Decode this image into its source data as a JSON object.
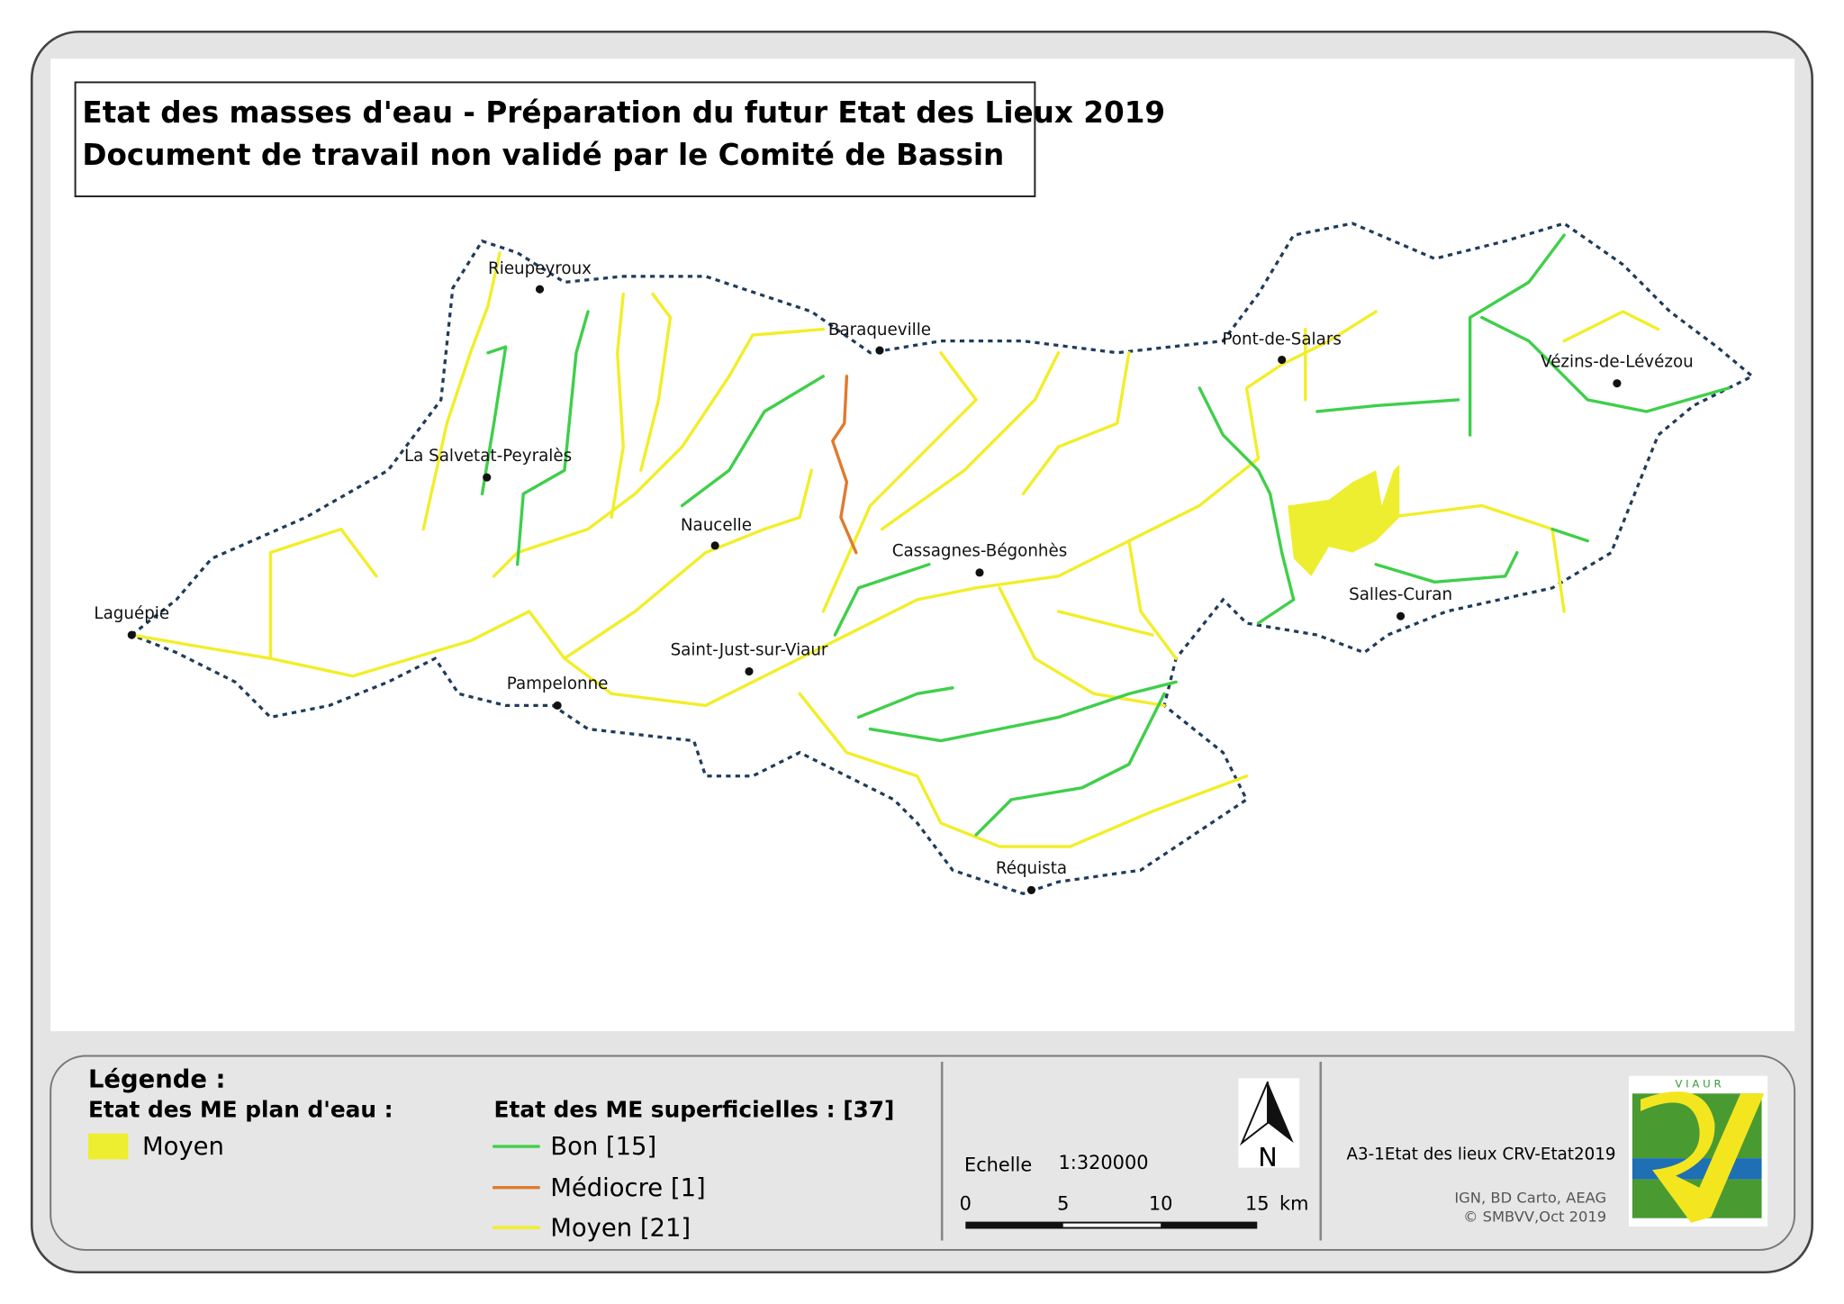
{
  "header": {
    "title_line1": "Etat des masses d'eau - Préparation du futur Etat des Lieux 2019",
    "title_line2": "Document de travail non validé par le Comité de Bassin"
  },
  "towns": [
    "Rieupeyroux",
    "Baraqueville",
    "Pont-de-Salars",
    "Vézins-de-Lévézou",
    "La Salvetat-Peyralès",
    "Naucelle",
    "Cassagnes-Bégonhès",
    "Laguépie",
    "Salles-Curan",
    "Saint-Just-sur-Viaur",
    "Pampelonne",
    "Réquista"
  ],
  "legend": {
    "title": "Légende :",
    "lakes_title": "Etat des ME plan d'eau :",
    "lakes": [
      "Moyen"
    ],
    "rivers_title": "Etat des ME superficielles : [37]",
    "rivers": [
      "Bon [15]",
      "Médiocre [1]",
      "Moyen [21]"
    ]
  },
  "scale": {
    "label": "Echelle",
    "ratio": "1:320000",
    "ticks": [
      "0",
      "5",
      "10",
      "15"
    ],
    "unit": "km",
    "north": "N"
  },
  "credits": {
    "reference": "A3-1Etat des lieux CRV-Etat2019",
    "sources": "IGN, BD Carto, AEAG",
    "copyright": "© SMBVV,Oct 2019",
    "logo": "V I A U R"
  }
}
